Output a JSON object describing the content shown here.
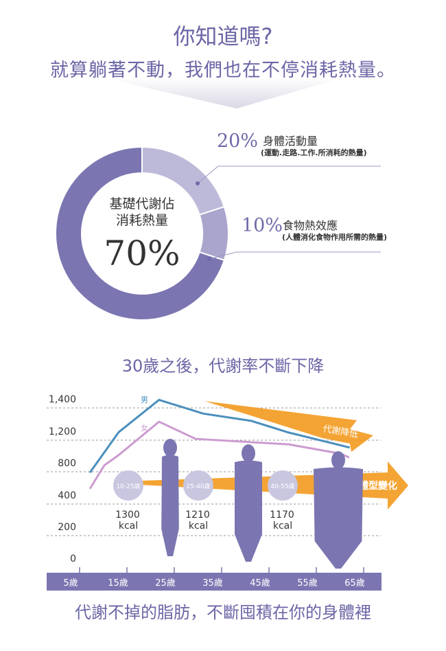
{
  "header": {
    "title": "你知道嗎?",
    "subtitle": "就算躺著不動，我們也在不停消耗熱量。"
  },
  "donut": {
    "center_label_1": "基礎代謝佔",
    "center_label_2": "消耗熱量",
    "center_value": "70%",
    "slices": [
      {
        "key": "activity",
        "percent": 20,
        "pct_label": "20%",
        "label": "身體活動量",
        "note": "(運動.走路.工作.所消耗的熱量)",
        "color": "#bdbad9"
      },
      {
        "key": "food",
        "percent": 10,
        "pct_label": "10%",
        "label": "食物熱效應",
        "note": "(人體消化食物作用所需的熱量)",
        "color": "#a9a5cd"
      },
      {
        "key": "basal",
        "percent": 70,
        "color": "#7b76b1"
      }
    ]
  },
  "section2": {
    "title": "30歲之後，代謝率不斷下降"
  },
  "chart_data": {
    "type": "line",
    "y_ticks": [
      "1,400",
      "1,200",
      "800",
      "400",
      "200",
      "0"
    ],
    "y_tick_values": [
      1400,
      1200,
      800,
      400,
      200,
      0
    ],
    "x_ticks": [
      "5歲",
      "15歲",
      "25歲",
      "35歲",
      "45歲",
      "55歲",
      "65歲"
    ],
    "x_tick_values": [
      5,
      15,
      25,
      35,
      45,
      55,
      65
    ],
    "grid": true,
    "series": [
      {
        "name": "男",
        "color": "#4a8fbd",
        "x": [
          9,
          15,
          23.4,
          32.6,
          42.6,
          50.4,
          63.1
        ],
        "y": [
          670,
          1180,
          1390,
          1305,
          1260,
          1175,
          985
        ]
      },
      {
        "name": "女",
        "color": "#cc9bd0",
        "x": [
          9,
          12,
          15,
          23.4,
          31,
          50.4,
          61,
          63
        ],
        "y": [
          470,
          760,
          890,
          1255,
          1095,
          1025,
          910,
          860
        ]
      }
    ],
    "annotations": {
      "arrow_metabolism": "代謝降低",
      "arrow_body": "體型變化",
      "arrow_color": "#f39a1e",
      "stages": [
        {
          "age": "10-25歲",
          "kcal": "1300",
          "unit": "kcal"
        },
        {
          "age": "25-40歲",
          "kcal": "1210",
          "unit": "kcal"
        },
        {
          "age": "40-55歲",
          "kcal": "1170",
          "unit": "kcal"
        }
      ]
    }
  },
  "footer": {
    "text": "代謝不掉的脂肪，不斷囤積在你的身體裡"
  }
}
